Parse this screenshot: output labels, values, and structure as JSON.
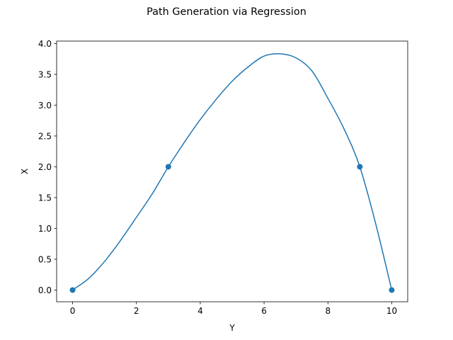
{
  "chart_data": {
    "type": "line",
    "title": "Path Generation via Regression",
    "xlabel": "Y",
    "ylabel": "X",
    "xlim": [
      -0.5,
      10.5
    ],
    "ylim": [
      -0.19,
      4.04
    ],
    "xticks": [
      0,
      2,
      4,
      6,
      8,
      10
    ],
    "xtick_labels": [
      "0",
      "2",
      "4",
      "6",
      "8",
      "10"
    ],
    "yticks": [
      0.0,
      0.5,
      1.0,
      1.5,
      2.0,
      2.5,
      3.0,
      3.5,
      4.0
    ],
    "ytick_labels": [
      "0.0",
      "0.5",
      "1.0",
      "1.5",
      "2.0",
      "2.5",
      "3.0",
      "3.5",
      "4.0"
    ],
    "grid": false,
    "color": "#1f77b4",
    "points": [
      {
        "x": 0,
        "y": 0
      },
      {
        "x": 3,
        "y": 2
      },
      {
        "x": 9,
        "y": 2
      },
      {
        "x": 10,
        "y": 0
      }
    ],
    "curve": {
      "x": [
        0,
        0.5,
        1,
        1.5,
        2,
        2.5,
        3,
        3.5,
        4,
        4.5,
        5,
        5.5,
        6,
        6.5,
        7,
        7.5,
        8,
        8.5,
        9,
        9.5,
        10
      ],
      "y": [
        0,
        0.1856,
        0.463,
        0.804,
        1.1806,
        1.5648,
        2.0,
        2.3954,
        2.7657,
        3.0954,
        3.3889,
        3.6204,
        3.7963,
        3.8333,
        3.7685,
        3.5556,
        3.1111,
        2.6204,
        2.0,
        1.0694,
        0
      ]
    }
  }
}
